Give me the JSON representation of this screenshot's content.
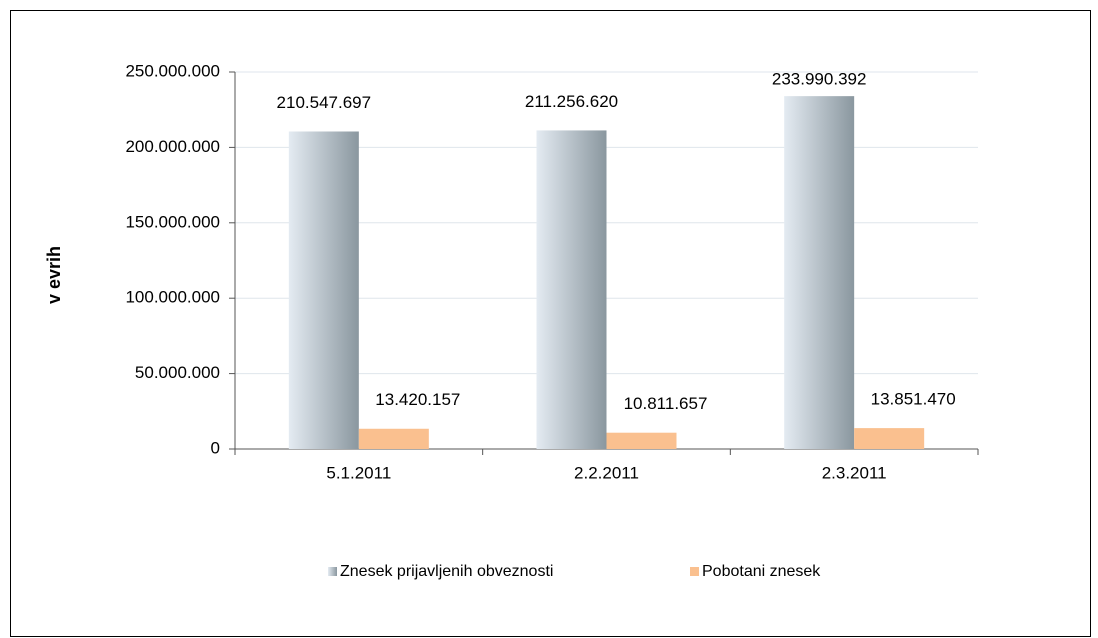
{
  "chart_data": {
    "type": "bar",
    "ylabel": "v evrih",
    "categories": [
      "5.1.2011",
      "2.2.2011",
      "2.3.2011"
    ],
    "series": [
      {
        "name": "Znesek prijavljenih obveznosti",
        "color": "#8a979f",
        "values": [
          210547697,
          211256620,
          233990392
        ],
        "value_labels": [
          "210.547.697",
          "211.256.620",
          "233.990.392"
        ]
      },
      {
        "name": "Pobotani znesek",
        "color": "#fac08f",
        "values": [
          13420157,
          10811657,
          13851470
        ],
        "value_labels": [
          "13.420.157",
          "10.811.657",
          "13.851.470"
        ]
      }
    ],
    "ylim": [
      0,
      250000000
    ],
    "yticks": [
      0,
      {
        "value": 50000000,
        "label": "50.000.000"
      },
      {
        "value": 100000000,
        "label": "100.000.000"
      },
      {
        "value": 150000000,
        "label": "150.000.000"
      },
      {
        "value": 200000000,
        "label": "200.000.000"
      },
      {
        "value": 250000000,
        "label": "250.000.000"
      }
    ],
    "grid": true,
    "legend": "bottom"
  }
}
